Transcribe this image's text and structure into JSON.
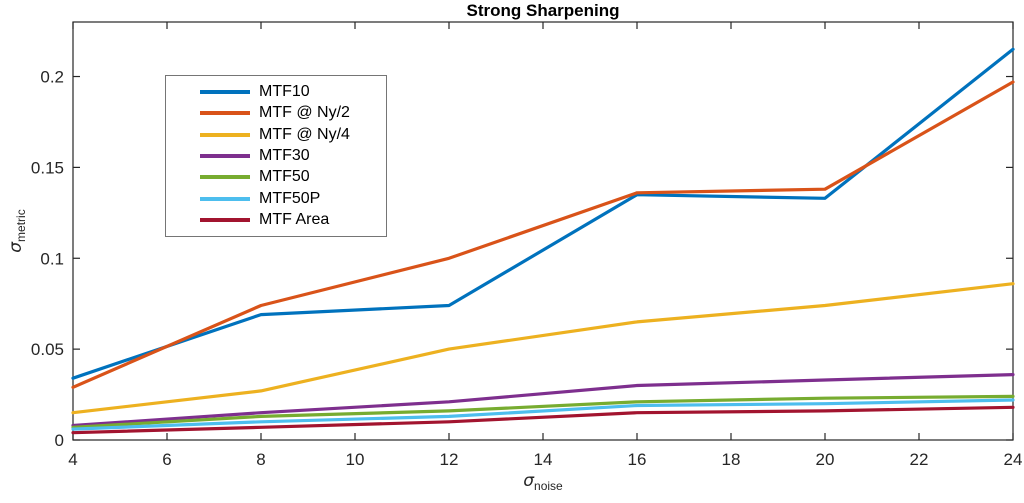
{
  "figure": {
    "title": "Strong Sharpening",
    "background": "#ffffff",
    "axis_color": "#262626",
    "legend_border_color": "#757575"
  },
  "axis_labels": {
    "y_base": "σ",
    "y_sub": "metric",
    "x_base": "σ",
    "x_sub": "noise"
  },
  "chart_data": {
    "type": "line",
    "title": "Strong Sharpening",
    "xlabel": "σ_noise",
    "ylabel": "σ_metric",
    "x": [
      4,
      8,
      12,
      16,
      20,
      24
    ],
    "series": [
      {
        "name": "MTF10",
        "color": "#0072BD",
        "values": [
          0.034,
          0.069,
          0.074,
          0.135,
          0.133,
          0.215
        ]
      },
      {
        "name": "MTF @ Ny/2",
        "color": "#D95319",
        "values": [
          0.029,
          0.074,
          0.1,
          0.136,
          0.138,
          0.197
        ]
      },
      {
        "name": "MTF @ Ny/4",
        "color": "#EDB120",
        "values": [
          0.015,
          0.027,
          0.05,
          0.065,
          0.074,
          0.086
        ]
      },
      {
        "name": "MTF30",
        "color": "#7E2F8E",
        "values": [
          0.008,
          0.015,
          0.021,
          0.03,
          0.033,
          0.036
        ]
      },
      {
        "name": "MTF50",
        "color": "#77AC30",
        "values": [
          0.007,
          0.013,
          0.016,
          0.021,
          0.023,
          0.024
        ]
      },
      {
        "name": "MTF50P",
        "color": "#4DBEEE",
        "values": [
          0.006,
          0.01,
          0.013,
          0.019,
          0.02,
          0.022
        ]
      },
      {
        "name": "MTF Area",
        "color": "#A2142F",
        "values": [
          0.004,
          0.007,
          0.01,
          0.015,
          0.016,
          0.018
        ]
      }
    ],
    "xlim": [
      4,
      24
    ],
    "ylim": [
      0,
      0.23
    ],
    "xticks": [
      4,
      6,
      8,
      10,
      12,
      14,
      16,
      18,
      20,
      22,
      24
    ],
    "xtick_labels": [
      "4",
      "6",
      "8",
      "10",
      "12",
      "14",
      "16",
      "18",
      "20",
      "22",
      "24"
    ],
    "yticks": [
      0,
      0.05,
      0.1,
      0.15,
      0.2
    ],
    "ytick_labels": [
      "0",
      "0.05",
      "0.1",
      "0.15",
      "0.2"
    ],
    "grid": false,
    "box": true,
    "legend_position": "upper-left-inside"
  }
}
